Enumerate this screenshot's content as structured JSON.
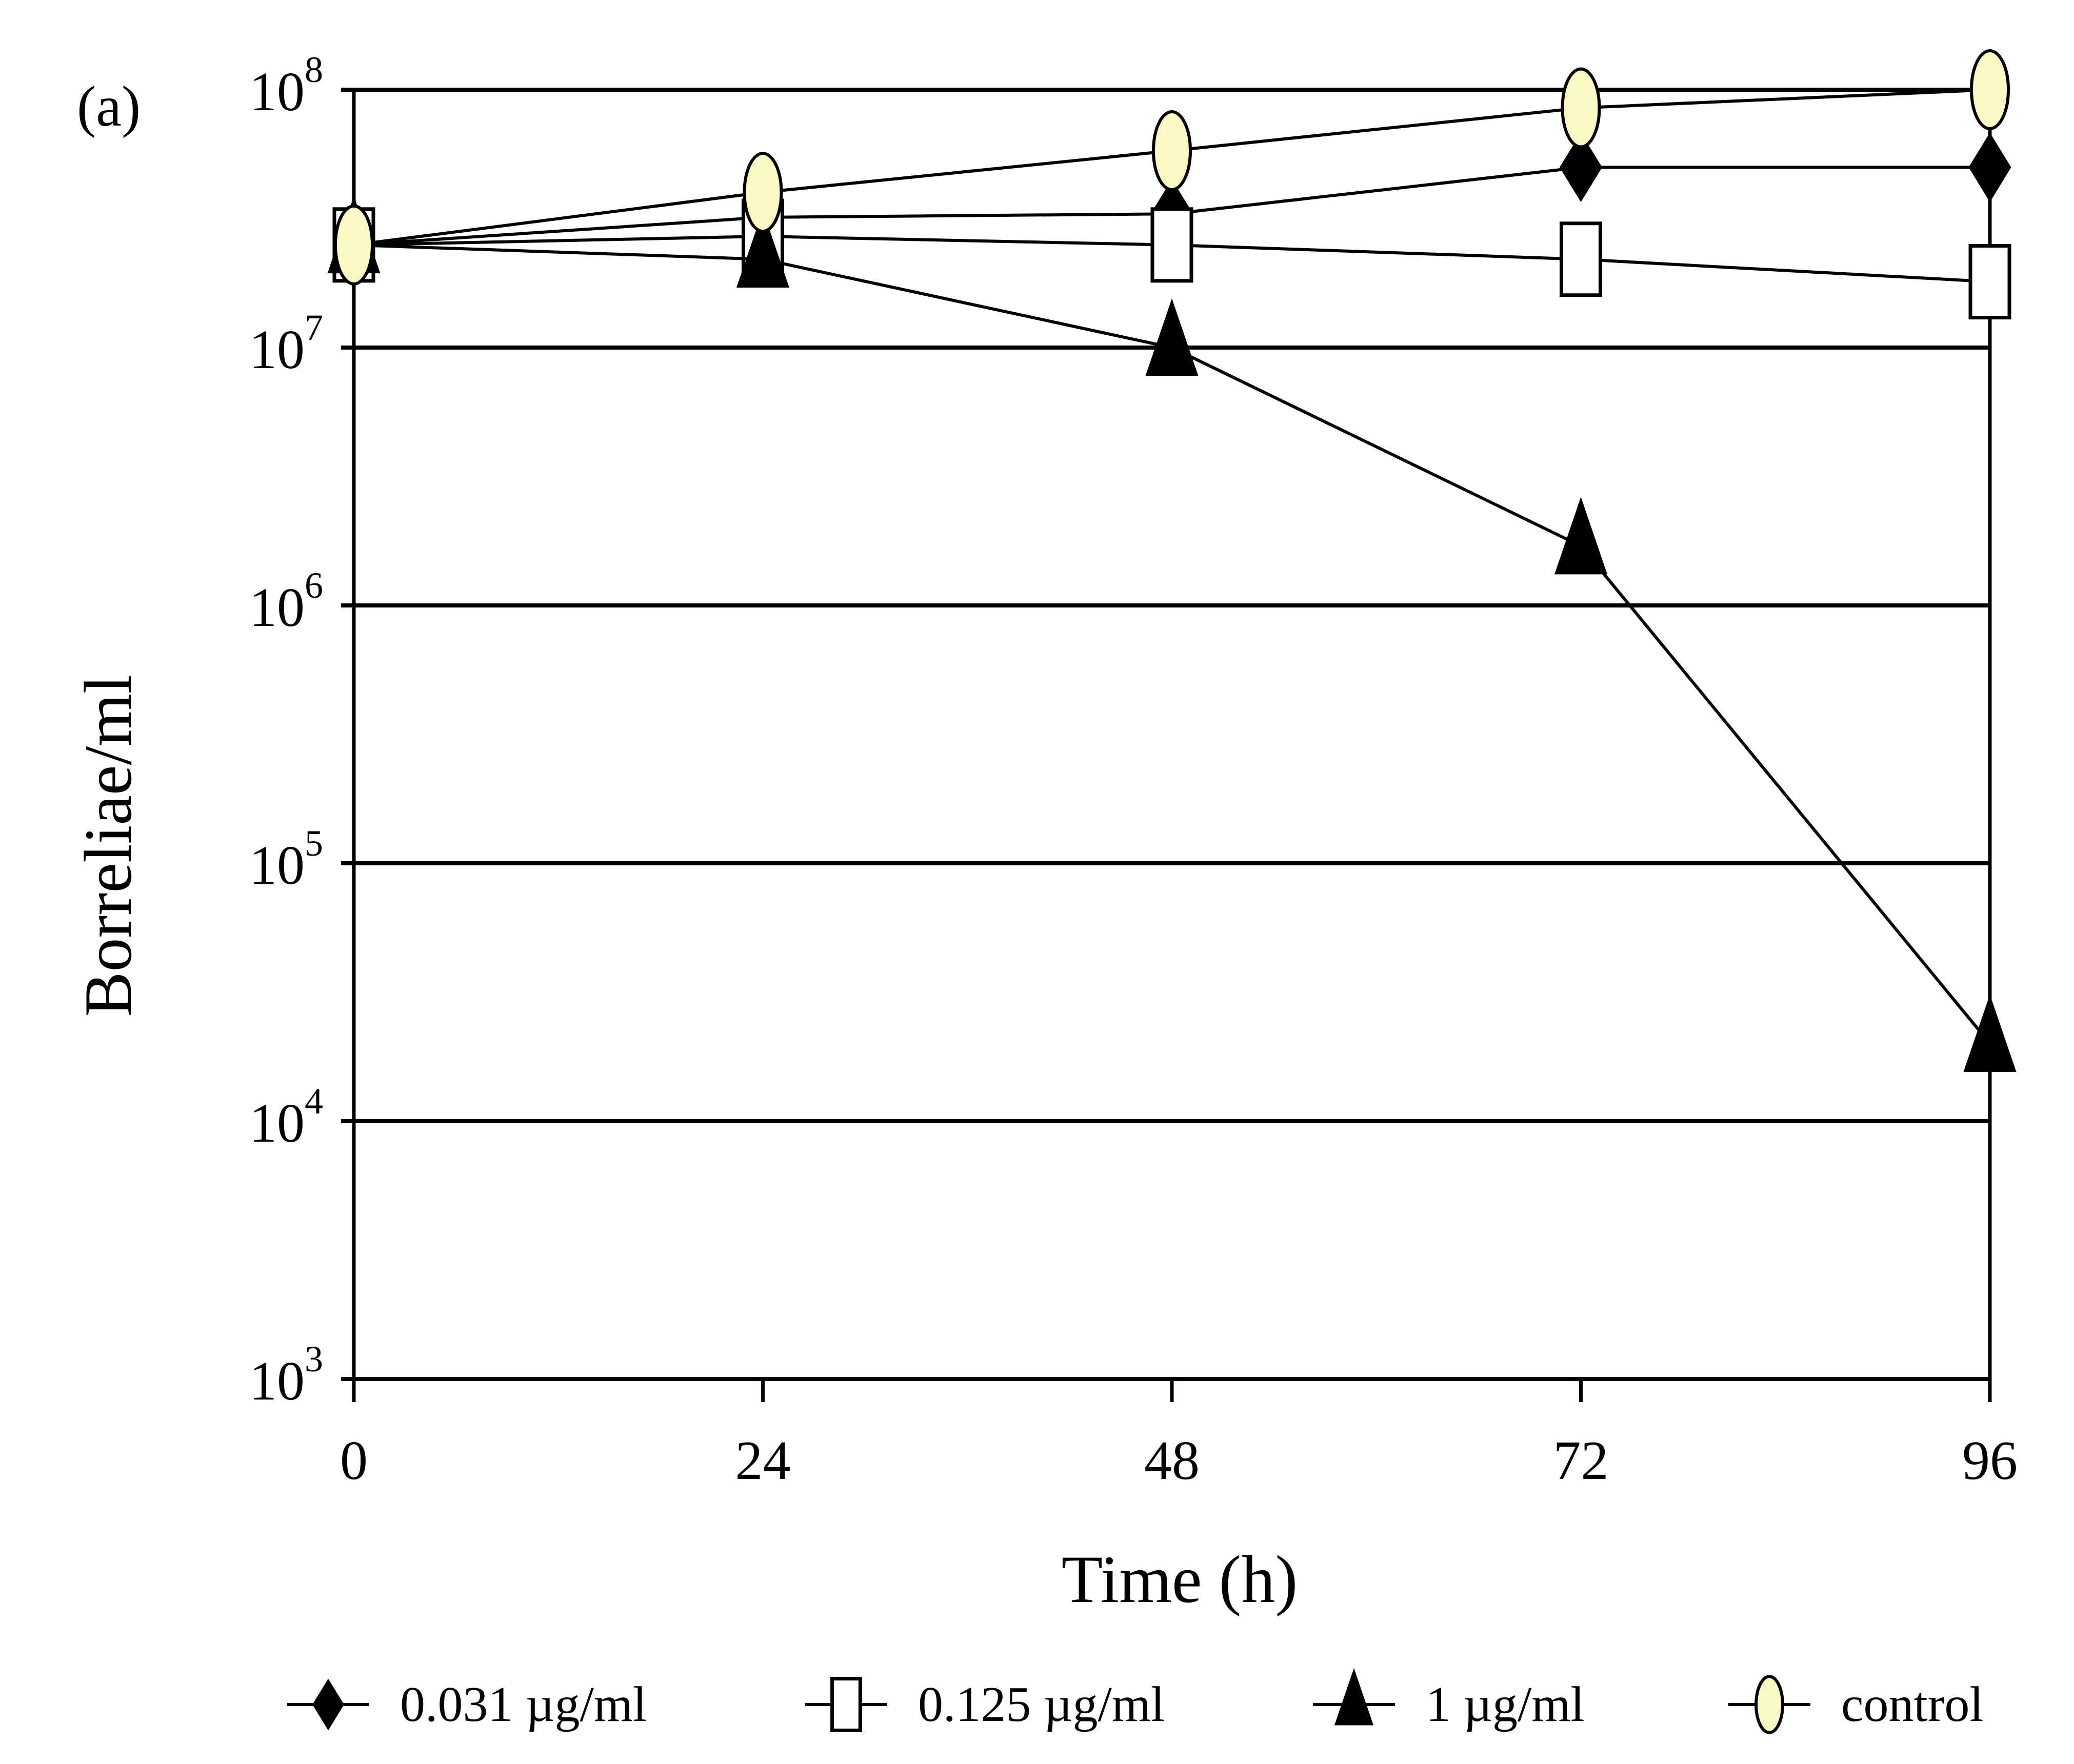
{
  "chart_data": {
    "type": "line",
    "panel_label": "(a)",
    "title": "",
    "xlabel": "Time (h)",
    "ylabel": "Borreliae/ml",
    "x": [
      0,
      24,
      48,
      72,
      96
    ],
    "xlim": [
      0,
      96
    ],
    "x_tick_labels": [
      "0",
      "24",
      "48",
      "72",
      "96"
    ],
    "yscale": "log",
    "ylim": [
      1000,
      100000000
    ],
    "y_ticks": [
      {
        "exp": 3,
        "base": "10",
        "sup": "3"
      },
      {
        "exp": 4,
        "base": "10",
        "sup": "4"
      },
      {
        "exp": 5,
        "base": "10",
        "sup": "5"
      },
      {
        "exp": 6,
        "base": "10",
        "sup": "6"
      },
      {
        "exp": 7,
        "base": "10",
        "sup": "7"
      },
      {
        "exp": 8,
        "base": "10",
        "sup": "8"
      }
    ],
    "grid": "horizontal",
    "legend_position": "bottom",
    "series": [
      {
        "name": "0.031 µg/ml",
        "marker": "diamond",
        "marker_fill": "#000000",
        "values": [
          25000000,
          32000000,
          33000000,
          50000000,
          50000000
        ]
      },
      {
        "name": "0.125 µg/ml",
        "marker": "square",
        "marker_fill": "#ffffff",
        "values": [
          25000000,
          27000000,
          25000000,
          22000000,
          18000000
        ]
      },
      {
        "name": "1 µg/ml",
        "marker": "triangle",
        "marker_fill": "#000000",
        "values": [
          25000000,
          22000000,
          10000000,
          1700000,
          20000
        ]
      },
      {
        "name": "control",
        "marker": "ellipse",
        "marker_fill": "#fbf8c6",
        "values": [
          25000000,
          40000000,
          58000000,
          85000000,
          100000000
        ]
      }
    ]
  }
}
